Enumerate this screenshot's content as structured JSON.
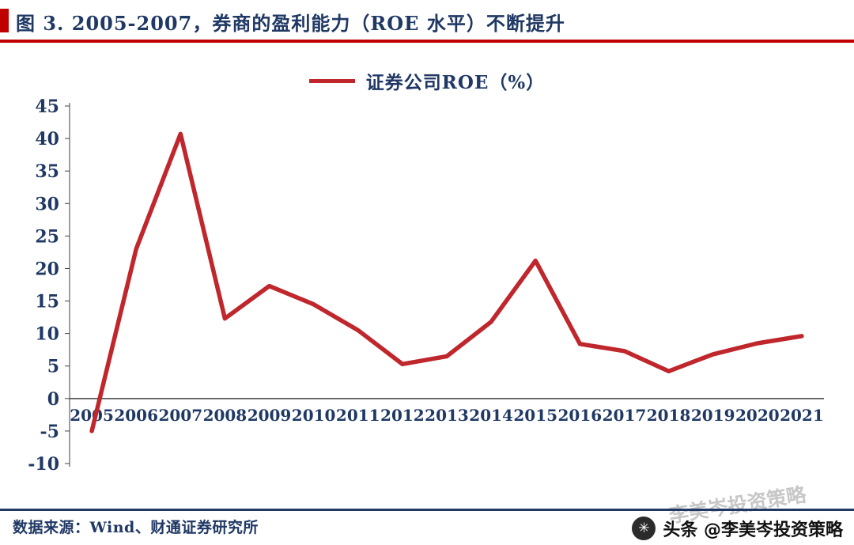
{
  "header": {
    "title": "图 3. 2005-2007，券商的盈利能力（ROE 水平）不断提升"
  },
  "footer": {
    "source": "数据来源：Wind、财通证券研究所"
  },
  "watermark": {
    "diagonal": "李美岑投资策略",
    "badge": "头条 @李美岑投资策略",
    "badge_icon_glyph": "✳"
  },
  "colors": {
    "navy": "#1f3864",
    "red": "#c00000",
    "line_red": "#c0272d"
  },
  "chart_data": {
    "type": "line",
    "title": "",
    "legend": "证券公司ROE（%）",
    "legend_position": "top-center",
    "categories": [
      "2005",
      "2006",
      "2007",
      "2008",
      "2009",
      "2010",
      "2011",
      "2012",
      "2013",
      "2014",
      "2015",
      "2016",
      "2017",
      "2018",
      "2019",
      "2020",
      "2021"
    ],
    "values": [
      -5.0,
      23.0,
      40.7,
      12.3,
      17.3,
      14.5,
      10.5,
      5.3,
      6.5,
      11.8,
      21.2,
      8.4,
      7.3,
      4.2,
      6.8,
      8.5,
      9.6
    ],
    "ylim": [
      -10,
      45
    ],
    "ytick_step": 5,
    "grid": false,
    "xlabel": "",
    "ylabel": ""
  }
}
